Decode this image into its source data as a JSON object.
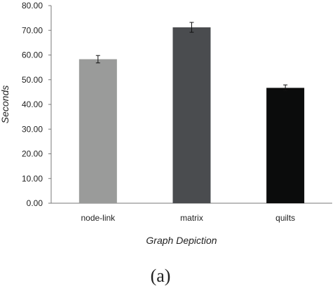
{
  "chart_data": {
    "type": "bar",
    "categories": [
      "node-link",
      "matrix",
      "quilts"
    ],
    "values": [
      58.3,
      71.2,
      46.7
    ],
    "errors": [
      1.5,
      2.0,
      1.2
    ],
    "colors": [
      "#9a9b9a",
      "#4a4c4f",
      "#0b0c0c"
    ],
    "xlabel": "Graph Depiction",
    "ylabel": "Seconds",
    "ylim": [
      0,
      80
    ],
    "yticks": [
      "0.00",
      "10.00",
      "20.00",
      "30.00",
      "40.00",
      "50.00",
      "60.00",
      "70.00",
      "80.00"
    ],
    "grid": false
  },
  "caption": "(a)"
}
